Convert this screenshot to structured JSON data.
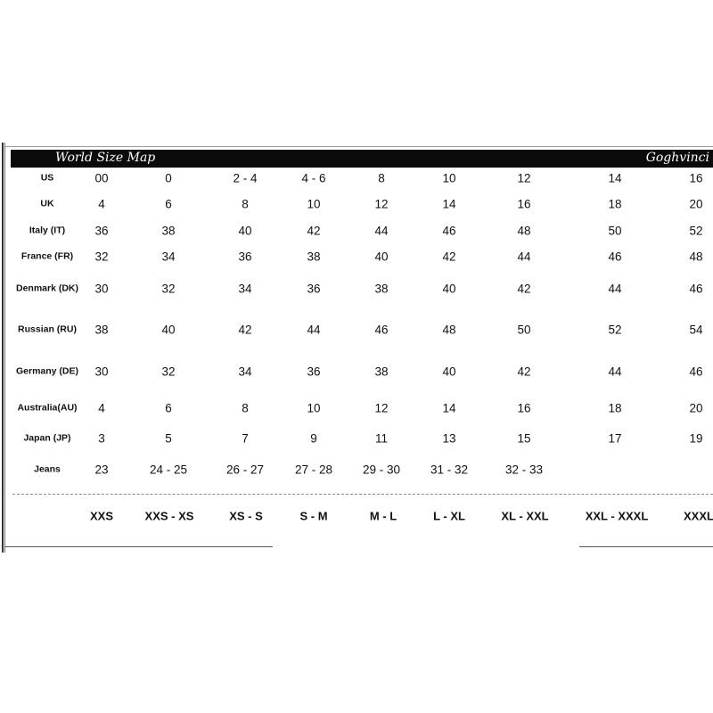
{
  "header": {
    "title": "World Size Map",
    "brand": "Goghvinci"
  },
  "rows": [
    {
      "label": "US",
      "values": [
        "00",
        "0",
        "2 - 4",
        "4 - 6",
        "8",
        "10",
        "12",
        "14",
        "16"
      ]
    },
    {
      "label": "UK",
      "values": [
        "4",
        "6",
        "8",
        "10",
        "12",
        "14",
        "16",
        "18",
        "20"
      ]
    },
    {
      "label": "Italy (IT)",
      "values": [
        "36",
        "38",
        "40",
        "42",
        "44",
        "46",
        "48",
        "50",
        "52"
      ]
    },
    {
      "label": "France (FR)",
      "values": [
        "32",
        "34",
        "36",
        "38",
        "40",
        "42",
        "44",
        "46",
        "48"
      ]
    },
    {
      "label": "Denmark (DK)",
      "values": [
        "30",
        "32",
        "34",
        "36",
        "38",
        "40",
        "42",
        "44",
        "46"
      ]
    },
    {
      "label": "Russian (RU)",
      "values": [
        "38",
        "40",
        "42",
        "44",
        "46",
        "48",
        "50",
        "52",
        "54"
      ]
    },
    {
      "label": "Germany (DE)",
      "values": [
        "30",
        "32",
        "34",
        "36",
        "38",
        "40",
        "42",
        "44",
        "46"
      ]
    },
    {
      "label": "Australia(AU)",
      "values": [
        "4",
        "6",
        "8",
        "10",
        "12",
        "14",
        "16",
        "18",
        "20"
      ]
    },
    {
      "label": "Japan (JP)",
      "values": [
        "3",
        "5",
        "7",
        "9",
        "11",
        "13",
        "15",
        "17",
        "19"
      ]
    },
    {
      "label": "Jeans",
      "values": [
        "23",
        "24 - 25",
        "26 - 27",
        "27 - 28",
        "29 - 30",
        "31 - 32",
        "32 - 33"
      ]
    }
  ],
  "sizes": [
    "XXS",
    "XXS - XS",
    "XS - S",
    "S - M",
    "M - L",
    "L - XL",
    "XL - XXL",
    "XXL - XXXL",
    "XXXL"
  ]
}
